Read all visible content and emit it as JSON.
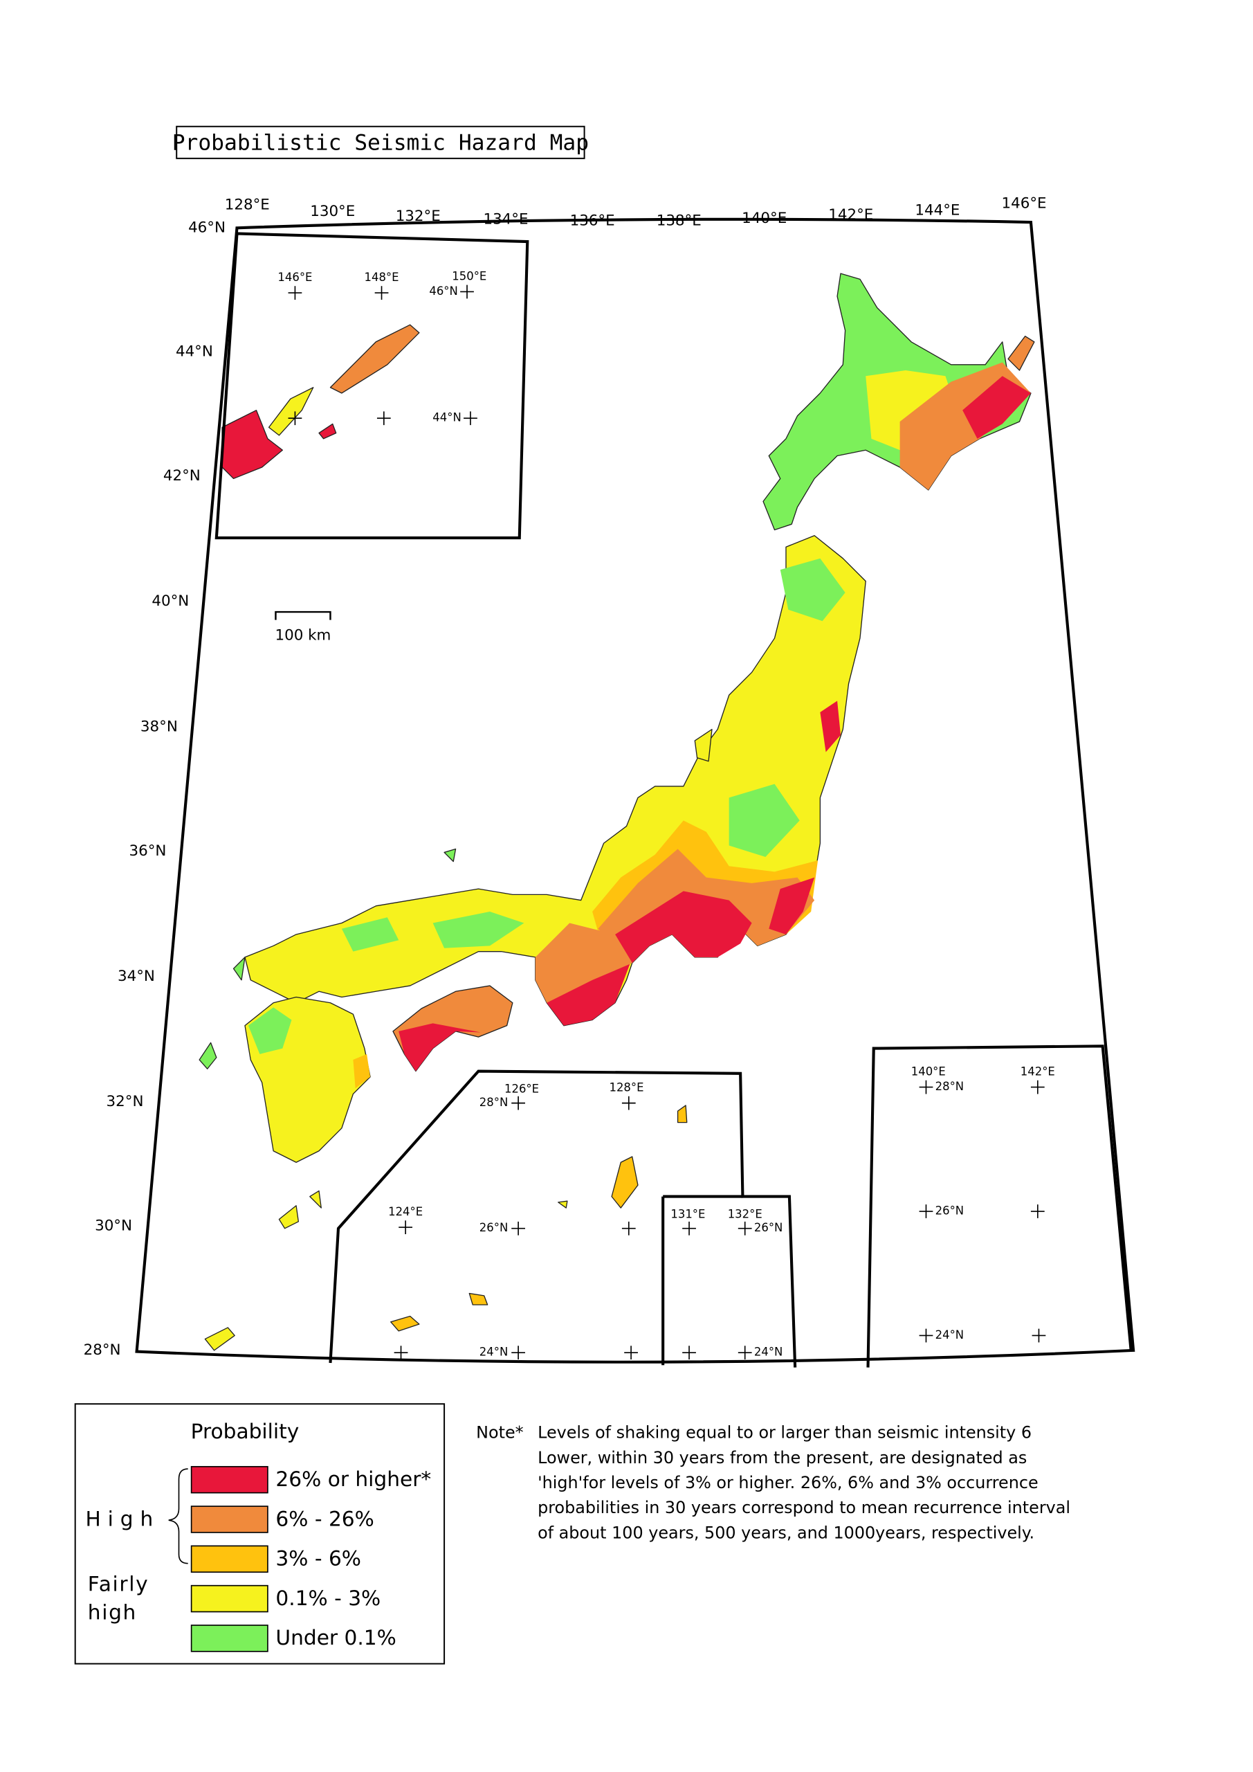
{
  "title": "Probabilistic Seismic Hazard Map",
  "longitude_labels": [
    "128°E",
    "130°E",
    "132°E",
    "134°E",
    "136°E",
    "138°E",
    "140°E",
    "142°E",
    "144°E",
    "146°E"
  ],
  "latitude_labels": [
    "46°N",
    "44°N",
    "42°N",
    "40°N",
    "38°N",
    "36°N",
    "34°N",
    "32°N",
    "30°N",
    "28°N"
  ],
  "scale_bar": "100 km",
  "insets": {
    "kuril": [
      "146°E",
      "148°E",
      "150°E",
      "46°N",
      "44°N"
    ],
    "okinawa": [
      "126°E",
      "28°N",
      "128°E",
      "124°E",
      "26°N",
      "24°N"
    ],
    "daito": [
      "131°E",
      "132°E",
      "26°N",
      "24°N"
    ],
    "ogasawara": [
      "140°E",
      "28°N",
      "142°E",
      "26°N",
      "24°N"
    ]
  },
  "legend": {
    "title": "Probability",
    "high": "High",
    "fairly_high": [
      "Fairly",
      "high"
    ],
    "items": [
      {
        "label": "26% or higher*",
        "color": "#e8173a"
      },
      {
        "label": "6% - 26%",
        "color": "#f08a3c"
      },
      {
        "label": "3% - 6%",
        "color": "#ffc20e"
      },
      {
        "label": "0.1% - 3%",
        "color": "#f6f21e"
      },
      {
        "label": "Under 0.1%",
        "color": "#7cf05a"
      }
    ]
  },
  "note": {
    "marker": "Note*",
    "lines": [
      "Levels of shaking equal to or larger than seismic intensity 6",
      "Lower, within 30 years from  the present,  are designated as",
      "'high'for levels of 3% or higher. 26%, 6% and 3% occurrence",
      "probabilities in 30 years correspond to mean recurrence interval",
      "of about 100 years, 500 years, and 1000years, respectively."
    ]
  }
}
